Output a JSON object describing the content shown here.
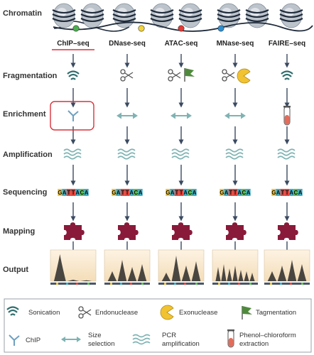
{
  "colors": {
    "dna_strand": "#1e2a3a",
    "nucleosome": "#bcc3cb",
    "arrow_dark": "#3a4a60",
    "arrow_light": "#7fb3b3",
    "puzzle": "#8a1a3a",
    "sonication": "#2f6d6d",
    "tagmentation": "#4f8a3c",
    "exonuclease": "#f1c232",
    "tube": "#e46c5a",
    "chip_highlight": "#d9323a",
    "output_bg": "#f8e6c8",
    "peak": "#2a2a2a"
  },
  "columns": [
    {
      "label": "ChIP–seq",
      "dot_color": "#4caf50",
      "highlight": true
    },
    {
      "label": "DNase-seq",
      "dot_color": "#f2d33c",
      "highlight": false
    },
    {
      "label": "ATAC-seq",
      "dot_color": "#e53935",
      "highlight": false
    },
    {
      "label": "MNase-seq",
      "dot_color": "#2f8fd0",
      "highlight": false
    },
    {
      "label": "FAIRE–seq",
      "dot_color": null,
      "highlight": false
    }
  ],
  "rows": {
    "chromatin": "Chromatin",
    "fragmentation": "Fragmentation",
    "enrichment": "Enrichment",
    "amplification": "Amplification",
    "sequencing": "Sequencing",
    "mapping": "Mapping",
    "output": "Output"
  },
  "fragmentation_icons": [
    "sonication-icon",
    "scissors-icon",
    "scissors-and-flag-icon",
    "scissors-and-pacman-icon",
    "sonication-icon"
  ],
  "enrichment_icons": [
    "antibody-icon",
    "double-arrow-icon",
    "double-arrow-icon",
    "double-arrow-icon",
    "test-tube-icon"
  ],
  "sequence": {
    "letters": [
      "G",
      "A",
      "T",
      "T",
      "A",
      "C",
      "A"
    ],
    "colors": [
      "#f0c33c",
      "#3bb0c9",
      "#e8453c",
      "#e8453c",
      "#3bb0c9",
      "#5bbf57",
      "#3bb0c9"
    ]
  },
  "output_profiles": [
    [
      0.95,
      0.05,
      0.03
    ],
    [
      0.35,
      0.75,
      0.5,
      0.6
    ],
    [
      0.3,
      0.9,
      0.55,
      0.7
    ],
    [
      0.5,
      0.6,
      0.45,
      0.55,
      0.4,
      0.35,
      0.3
    ],
    [
      0.35,
      0.55,
      0.75,
      0.6
    ]
  ],
  "legend": {
    "sonication": "Sonication",
    "endonuclease": "Endonuclease",
    "exonuclease": "Exonuclease",
    "tagmentation": "Tagmentation",
    "chip": "ChIP",
    "size_selection_1": "Size",
    "size_selection_2": "selection",
    "pcr_1": "PCR",
    "pcr_2": "amplification",
    "phenol_1": "Phenol–chloroform",
    "phenol_2": "extraction"
  }
}
